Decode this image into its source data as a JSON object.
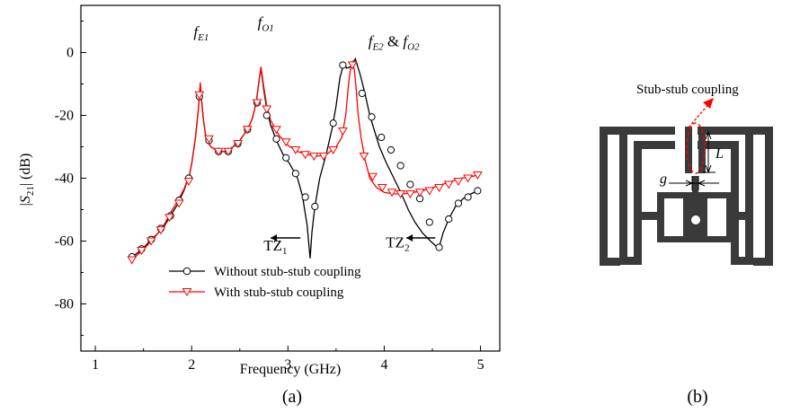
{
  "chart_data": [
    {
      "type": "line",
      "xlabel": "Frequency (GHz)",
      "ylabel": "|S21| (dB)",
      "xlim": [
        0.85,
        5.2
      ],
      "ylim": [
        -95,
        15
      ],
      "xticks": [
        1,
        2,
        3,
        4,
        5
      ],
      "yticks": [
        0,
        -20,
        -40,
        -60,
        -80
      ],
      "xtick_labels": [
        "1",
        "2",
        "3",
        "4",
        "5"
      ],
      "ytick_labels": [
        "0",
        "-20",
        "-40",
        "-60",
        "-80"
      ],
      "grid": false,
      "legend_position": "bottom-center",
      "series": [
        {
          "name": "Without stub-stub coupling",
          "color": "#000000",
          "marker": "circle",
          "x": [
            1.38,
            1.45,
            1.52,
            1.58,
            1.65,
            1.72,
            1.78,
            1.85,
            1.92,
            1.98,
            2.0,
            2.04,
            2.07,
            2.09,
            2.1,
            2.12,
            2.15,
            2.2,
            2.28,
            2.35,
            2.43,
            2.5,
            2.58,
            2.63,
            2.67,
            2.7,
            2.72,
            2.75,
            2.78,
            2.82,
            2.88,
            2.95,
            3.02,
            3.1,
            3.15,
            3.2,
            3.23,
            3.25,
            3.28,
            3.33,
            3.4,
            3.46,
            3.5,
            3.54,
            3.58,
            3.61,
            3.65,
            3.7,
            3.75,
            3.8,
            3.85,
            3.9,
            3.95,
            4.02,
            4.1,
            4.18,
            4.25,
            4.32,
            4.4,
            4.48,
            4.55,
            4.57,
            4.61,
            4.67,
            4.74,
            4.82,
            4.9,
            4.97
          ],
          "y": [
            -65,
            -63.5,
            -61.5,
            -59.5,
            -57.5,
            -55,
            -52,
            -48.5,
            -44,
            -38.5,
            -35.5,
            -27,
            -18,
            -10.5,
            -14,
            -21,
            -27.5,
            -30,
            -31.5,
            -31.5,
            -30,
            -28,
            -24.5,
            -21,
            -16,
            -9,
            -5,
            -12,
            -18,
            -23,
            -28,
            -32.5,
            -35.5,
            -40,
            -45.5,
            -55,
            -65.5,
            -57,
            -49,
            -40,
            -32,
            -24,
            -17,
            -8,
            -3.5,
            -5,
            -4.5,
            -2,
            -7,
            -13,
            -20,
            -25,
            -30,
            -35,
            -40,
            -45,
            -50,
            -54,
            -57.5,
            -60,
            -62,
            -62,
            -57.5,
            -53,
            -49,
            -46.5,
            -45,
            -44
          ],
          "markers_x": [
            1.38,
            1.48,
            1.58,
            1.68,
            1.78,
            1.87,
            1.97,
            2.08,
            2.18,
            2.28,
            2.38,
            2.48,
            2.58,
            2.68,
            2.78,
            2.88,
            2.98,
            3.08,
            3.18,
            3.28,
            3.47,
            3.57,
            3.77,
            3.87,
            3.97,
            4.07,
            4.17,
            4.27,
            4.37,
            4.47,
            4.57,
            4.67,
            4.77,
            4.87,
            4.97
          ],
          "markers_y": [
            -65,
            -62.5,
            -59.5,
            -56,
            -52,
            -47,
            -40,
            -14,
            -28,
            -31.5,
            -31.5,
            -29,
            -24.5,
            -16,
            -20,
            -27.5,
            -33.5,
            -38.5,
            -46,
            -49,
            -22.5,
            -4,
            -13,
            -20.5,
            -27,
            -31,
            -36,
            -42,
            -46.5,
            -54,
            -62,
            -53,
            -48,
            -46,
            -44
          ]
        },
        {
          "name": "With stub-stub coupling",
          "color": "#ff0000",
          "marker": "triangle-down",
          "x": [
            1.38,
            1.45,
            1.52,
            1.58,
            1.65,
            1.72,
            1.78,
            1.85,
            1.92,
            1.98,
            2.0,
            2.04,
            2.07,
            2.09,
            2.1,
            2.12,
            2.15,
            2.2,
            2.28,
            2.35,
            2.43,
            2.5,
            2.58,
            2.63,
            2.67,
            2.7,
            2.72,
            2.75,
            2.78,
            2.82,
            2.9,
            3.0,
            3.1,
            3.2,
            3.3,
            3.4,
            3.5,
            3.56,
            3.6,
            3.63,
            3.65,
            3.67,
            3.69,
            3.71,
            3.73,
            3.76,
            3.8,
            3.85,
            3.92,
            4.0,
            4.1,
            4.2,
            4.3,
            4.4,
            4.5,
            4.6,
            4.7,
            4.8,
            4.9,
            4.97
          ],
          "y": [
            -66,
            -64,
            -62,
            -60,
            -57.5,
            -54.5,
            -51,
            -47.5,
            -43.5,
            -38.5,
            -35.5,
            -27,
            -18,
            -9.5,
            -13.5,
            -21,
            -27.5,
            -30,
            -31.5,
            -31.5,
            -30,
            -28,
            -24.5,
            -21,
            -16,
            -9,
            -4.5,
            -11,
            -17,
            -21.5,
            -26,
            -29.5,
            -31.5,
            -32.5,
            -33,
            -32.5,
            -30,
            -27,
            -20,
            -10,
            -5,
            -3,
            -5.5,
            -12,
            -20,
            -27,
            -34,
            -40,
            -43,
            -44.5,
            -45,
            -45,
            -44.5,
            -44,
            -43,
            -42,
            -41,
            -40,
            -39.5,
            -39
          ],
          "markers_x": [
            1.38,
            1.48,
            1.58,
            1.68,
            1.77,
            1.87,
            1.97,
            2.08,
            2.18,
            2.28,
            2.38,
            2.48,
            2.58,
            2.68,
            2.78,
            2.88,
            2.98,
            3.08,
            3.18,
            3.27,
            3.37,
            3.47,
            3.57,
            3.67,
            3.79,
            3.88,
            3.98,
            4.08,
            4.17,
            4.27,
            4.37,
            4.47,
            4.57,
            4.67,
            4.77,
            4.87,
            4.97
          ],
          "markers_y": [
            -66,
            -63,
            -60,
            -56.5,
            -52.5,
            -48,
            -41,
            -13.5,
            -27.5,
            -31.5,
            -31.5,
            -29,
            -24.5,
            -16,
            -18,
            -24.5,
            -28.5,
            -31,
            -32.5,
            -33,
            -33,
            -31,
            -25,
            -4,
            -33,
            -39.5,
            -43,
            -44.5,
            -45,
            -45,
            -44.5,
            -44,
            -43,
            -42,
            -41,
            -40,
            -39
          ]
        }
      ],
      "annotations": [
        {
          "text": "f",
          "sub": "E1",
          "x": 2.1,
          "y": 5
        },
        {
          "text": "f",
          "sub": "O1",
          "x": 2.77,
          "y": 8
        },
        {
          "text": "f",
          "sub": "E2",
          "x2": "O2",
          "joiner": " & ",
          "x": 4.1,
          "y": 2
        },
        {
          "text": "TZ",
          "sub": "1",
          "x": 2.87,
          "y": -63
        },
        {
          "text": "TZ",
          "sub": "2",
          "x": 4.14,
          "y": -62
        }
      ],
      "panel_label": "(a)"
    },
    {
      "type": "diagram",
      "label": "Stub-stub coupling",
      "dim_L": "L",
      "dim_g": "g",
      "panel_label": "(b)"
    }
  ]
}
